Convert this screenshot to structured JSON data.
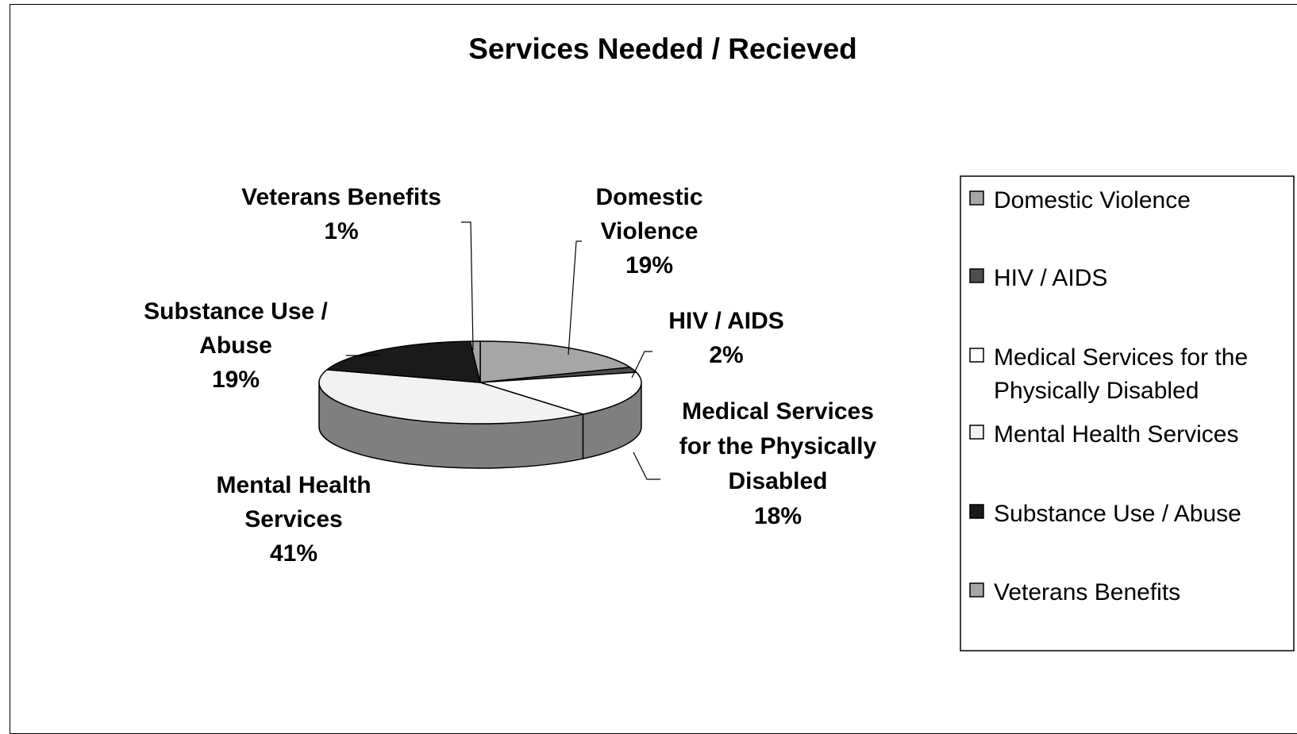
{
  "chart_data": {
    "type": "pie",
    "style": "3d-exploded-pie",
    "title": "Services Needed / Recieved",
    "categories": [
      "Domestic Violence",
      "HIV / AIDS",
      "Medical Services for the Physically Disabled",
      "Mental Health Services",
      "Substance Use / Abuse",
      "Veterans Benefits"
    ],
    "values": [
      19,
      2,
      18,
      41,
      19,
      1
    ],
    "unit": "%",
    "data_labels": [
      {
        "lines": [
          "Domestic",
          "Violence",
          "19%"
        ]
      },
      {
        "lines": [
          "HIV / AIDS",
          "2%"
        ]
      },
      {
        "lines": [
          "Medical Services",
          "for the Physically",
          "Disabled",
          "18%"
        ]
      },
      {
        "lines": [
          "Mental Health",
          "Services",
          "41%"
        ]
      },
      {
        "lines": [
          "Substance Use /",
          "Abuse",
          "19%"
        ]
      },
      {
        "lines": [
          "Veterans Benefits",
          "1%"
        ]
      }
    ],
    "legend": {
      "position": "right",
      "entries": [
        {
          "lines": [
            "Domestic Violence"
          ]
        },
        {
          "lines": [
            "HIV / AIDS"
          ]
        },
        {
          "lines": [
            "Medical Services for the",
            "Physically Disabled"
          ]
        },
        {
          "lines": [
            "Mental Health Services"
          ]
        },
        {
          "lines": [
            "Substance Use / Abuse"
          ]
        },
        {
          "lines": [
            "Veterans Benefits"
          ]
        }
      ]
    },
    "colors": [
      "#a6a6a6",
      "#4d4d4d",
      "#ffffff",
      "#f2f2f2",
      "#1a1a1a",
      "#a6a6a6"
    ],
    "side_color": "#7f7f7f"
  }
}
